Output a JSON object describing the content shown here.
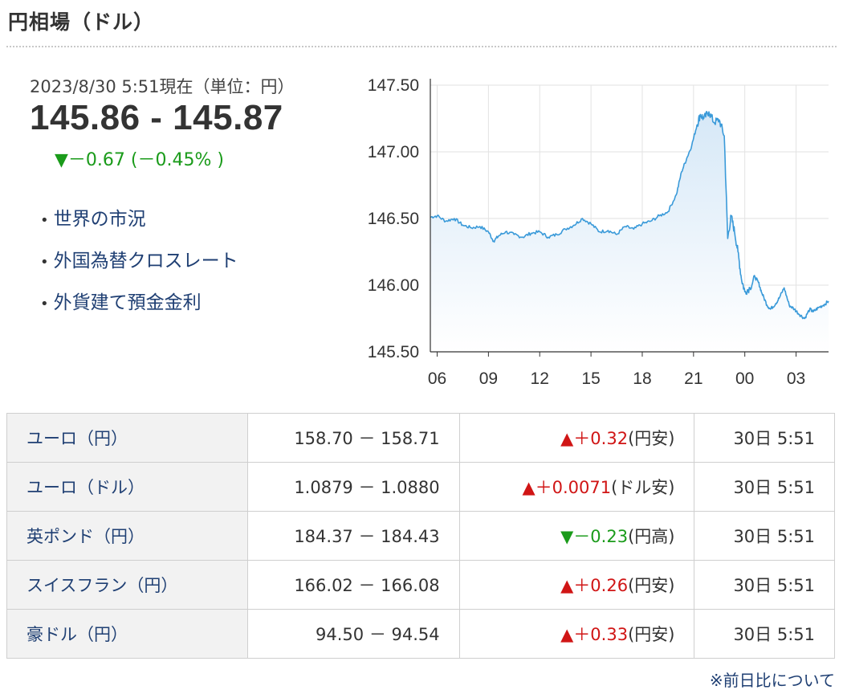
{
  "header": {
    "title": "円相場（ドル）"
  },
  "quote": {
    "as_of": "2023/8/30 5:51現在（単位：円）",
    "price": "145.86 - 145.87",
    "change": "▼－0.67 (－0.45% )"
  },
  "links": [
    {
      "label": "世界の市況"
    },
    {
      "label": "外国為替クロスレート"
    },
    {
      "label": "外貨建て預金金利"
    }
  ],
  "chart_data": {
    "type": "area",
    "title": "",
    "xlabel": "",
    "ylabel": "",
    "ylim": [
      145.5,
      147.5
    ],
    "y_ticks": [
      "147.50",
      "147.00",
      "146.50",
      "146.00",
      "145.50"
    ],
    "x_ticks": [
      "06",
      "09",
      "12",
      "15",
      "18",
      "21",
      "00",
      "03"
    ],
    "x_range_hours": [
      5.6,
      28.9
    ],
    "grid": true,
    "colors": {
      "line": "#3a9ad9",
      "fill_top": "#d6e8f7",
      "fill_bottom": "#ffffff"
    },
    "x": [
      5.6,
      6.0,
      6.5,
      7.0,
      7.5,
      8.0,
      8.5,
      9.0,
      9.3,
      9.6,
      10.0,
      10.5,
      11.0,
      11.5,
      12.0,
      12.5,
      13.0,
      13.5,
      14.0,
      14.5,
      15.0,
      15.5,
      16.0,
      16.5,
      17.0,
      17.5,
      18.0,
      18.5,
      19.0,
      19.5,
      20.0,
      20.3,
      20.6,
      20.9,
      21.2,
      21.4,
      21.6,
      21.9,
      22.2,
      22.5,
      22.8,
      23.0,
      23.2,
      23.4,
      23.6,
      23.8,
      24.0,
      24.3,
      24.6,
      24.8,
      25.0,
      25.3,
      25.5,
      25.8,
      26.0,
      26.3,
      26.6,
      26.9,
      27.2,
      27.5,
      27.8,
      28.0,
      28.3,
      28.6,
      28.9
    ],
    "y": [
      146.51,
      146.52,
      146.48,
      146.5,
      146.45,
      146.43,
      146.44,
      146.4,
      146.33,
      146.37,
      146.4,
      146.38,
      146.36,
      146.39,
      146.4,
      146.36,
      146.38,
      146.42,
      146.45,
      146.5,
      146.46,
      146.4,
      146.41,
      146.38,
      146.44,
      146.42,
      146.46,
      146.48,
      146.52,
      146.55,
      146.68,
      146.85,
      146.95,
      147.05,
      147.2,
      147.28,
      147.25,
      147.3,
      147.22,
      147.24,
      147.12,
      146.35,
      146.52,
      146.4,
      146.25,
      146.05,
      145.95,
      145.98,
      146.06,
      146.02,
      145.94,
      145.85,
      145.82,
      145.86,
      145.9,
      145.98,
      145.85,
      145.82,
      145.78,
      145.75,
      145.82,
      145.8,
      145.83,
      145.85,
      145.88
    ]
  },
  "rates": [
    {
      "name": "ユーロ（円）",
      "bid_ask": "158.70 － 158.71",
      "change": "▲＋0.32",
      "note": "(円安)",
      "dir": "up",
      "time": "30日 5:51"
    },
    {
      "name": "ユーロ（ドル）",
      "bid_ask": "1.0879 － 1.0880",
      "change": "▲＋0.0071",
      "note": "(ドル安)",
      "dir": "up",
      "time": "30日 5:51"
    },
    {
      "name": "英ポンド（円）",
      "bid_ask": "184.37 － 184.43",
      "change": "▼－0.23",
      "note": "(円高)",
      "dir": "down",
      "time": "30日 5:51"
    },
    {
      "name": "スイスフラン（円）",
      "bid_ask": "166.02 － 166.08",
      "change": "▲＋0.26",
      "note": "(円安)",
      "dir": "up",
      "time": "30日 5:51"
    },
    {
      "name": "豪ドル（円）",
      "bid_ask": "94.50 － 94.54",
      "change": "▲＋0.33",
      "note": "(円安)",
      "dir": "up",
      "time": "30日 5:51"
    }
  ],
  "footnote": "※前日比について"
}
